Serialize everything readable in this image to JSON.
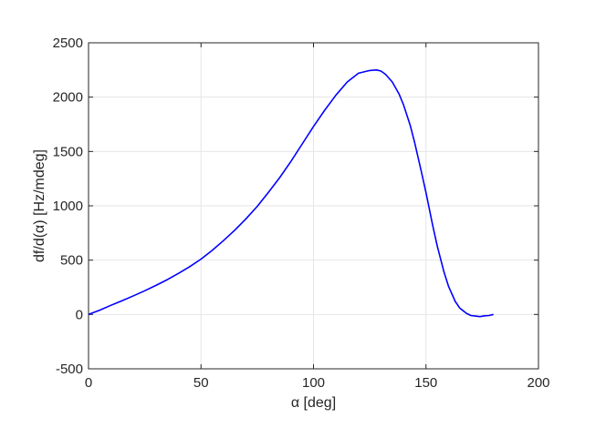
{
  "chart_data": {
    "type": "line",
    "title": "",
    "xlabel": "α [deg]",
    "ylabel": "df/d(α) [Hz/mdeg]",
    "xlim": [
      0,
      200
    ],
    "ylim": [
      -500,
      2500
    ],
    "xticks": [
      0,
      50,
      100,
      150,
      200
    ],
    "yticks": [
      -500,
      0,
      500,
      1000,
      1500,
      2000,
      2500
    ],
    "grid": true,
    "colors": {
      "series": "#0000ff",
      "grid": "#e6e6e6",
      "axes": "#262626"
    },
    "series": [
      {
        "name": "",
        "x": [
          0,
          5,
          10,
          15,
          20,
          25,
          30,
          35,
          40,
          45,
          50,
          55,
          60,
          65,
          70,
          75,
          80,
          85,
          90,
          95,
          100,
          105,
          110,
          115,
          120,
          125,
          128,
          130,
          132,
          135,
          138,
          140,
          143,
          145,
          148,
          150,
          153,
          155,
          158,
          160,
          163,
          165,
          168,
          170,
          172,
          174,
          176,
          178,
          180
        ],
        "y": [
          0,
          40,
          85,
          128,
          172,
          218,
          268,
          320,
          378,
          440,
          510,
          590,
          680,
          775,
          880,
          995,
          1125,
          1260,
          1410,
          1570,
          1730,
          1880,
          2020,
          2140,
          2220,
          2245,
          2250,
          2240,
          2210,
          2140,
          2030,
          1930,
          1740,
          1580,
          1310,
          1120,
          820,
          630,
          390,
          260,
          120,
          60,
          10,
          -10,
          -15,
          -20,
          -12,
          -10,
          0
        ]
      }
    ]
  }
}
